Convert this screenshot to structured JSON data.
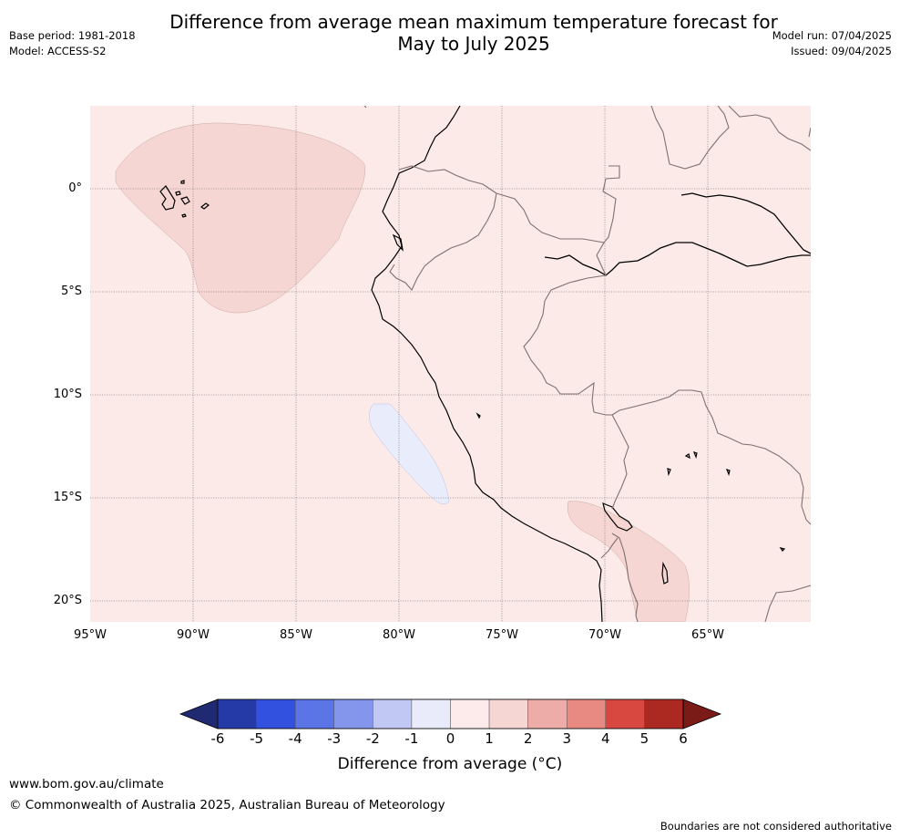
{
  "title": "Difference from average mean maximum temperature forecast for\nMay to July 2025",
  "meta_left": {
    "base_period": "Base period: 1981-2018",
    "model": "Model: ACCESS-S2"
  },
  "meta_right": {
    "model_run": "Model run: 07/04/2025",
    "issued": "Issued: 09/04/2025"
  },
  "map": {
    "lon_range": [
      -95,
      -60
    ],
    "lat_range": [
      -21,
      4
    ],
    "background_color": "#fbeae8",
    "x_ticks": [
      "95°W",
      "90°W",
      "85°W",
      "80°W",
      "75°W",
      "70°W",
      "65°W"
    ],
    "y_ticks": [
      "0°",
      "5°S",
      "10°S",
      "15°S",
      "20°S"
    ],
    "anomaly_regions": [
      {
        "category": "1 to 2",
        "color": "#f5d6d3",
        "location": "eastern Pacific near Galapagos"
      },
      {
        "category": "-1 to 0",
        "color": "#e9edfb",
        "location": "ocean off southern Peru"
      },
      {
        "category": "1 to 2",
        "color": "#f5d6d3",
        "location": "southern Peru / Bolivia altiplano"
      }
    ]
  },
  "colorbar": {
    "ticks": [
      "-6",
      "-5",
      "-4",
      "-3",
      "-2",
      "-1",
      "0",
      "1",
      "2",
      "3",
      "4",
      "5",
      "6"
    ],
    "colors": [
      "#263aa7",
      "#3351df",
      "#5b74e6",
      "#8496ec",
      "#c1c8f3",
      "#e9ebfa",
      "#fdeaea",
      "#f5d6d3",
      "#eeaca9",
      "#e88982",
      "#d94840",
      "#ab2921"
    ],
    "under_color": "#1f2a73",
    "over_color": "#7a1b17",
    "label": "Difference from average (°C)"
  },
  "footer": {
    "url": "www.bom.gov.au/climate",
    "copyright": "© Commonwealth of Australia 2025, Australian Bureau of Meteorology",
    "disclaimer": "Boundaries are not considered authoritative"
  }
}
